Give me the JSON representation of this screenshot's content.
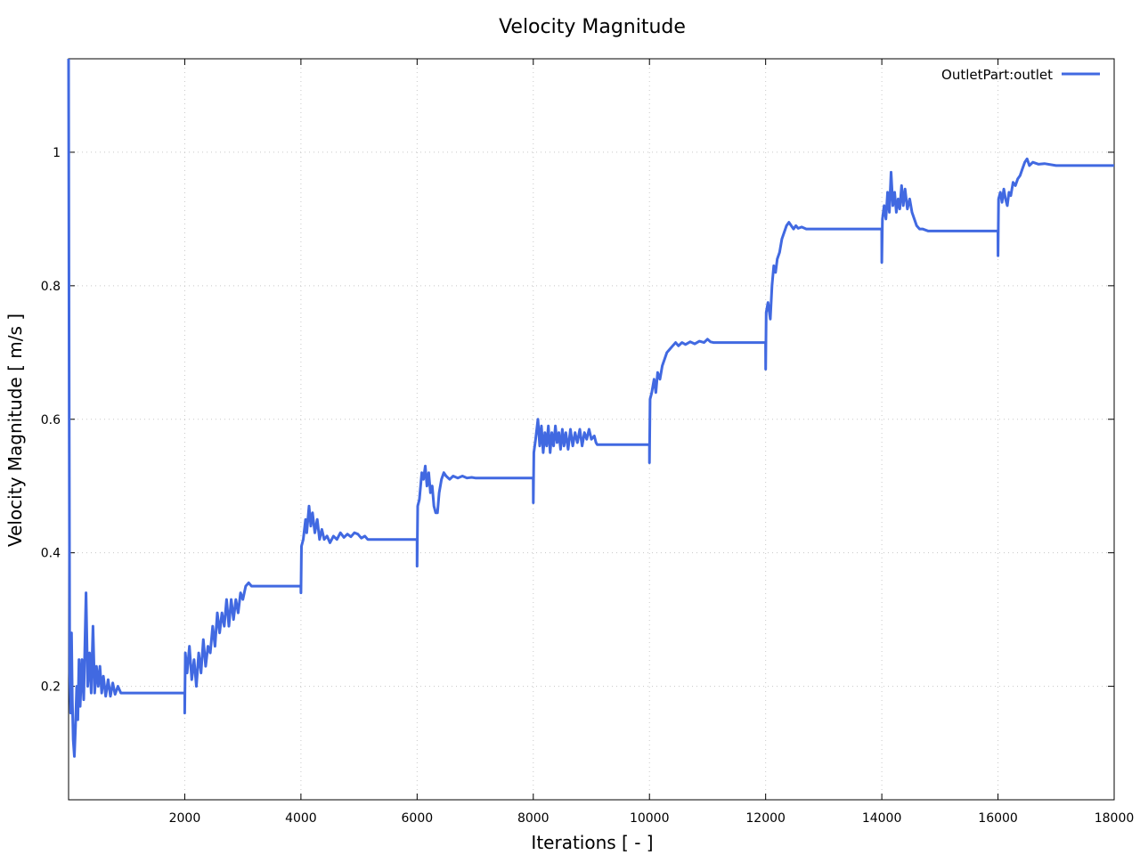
{
  "chart_data": {
    "type": "line",
    "title": "Velocity Magnitude",
    "xlabel": "Iterations [ - ]",
    "ylabel": "Velocity Magnitude [ m/s ]",
    "xlim": [
      0,
      18000
    ],
    "ylim": [
      0.03,
      1.14
    ],
    "x_ticks": [
      2000,
      4000,
      6000,
      8000,
      10000,
      12000,
      14000,
      16000,
      18000
    ],
    "y_ticks": [
      0.2,
      0.4,
      0.6,
      0.8,
      1
    ],
    "grid": true,
    "legend_position": "top-right",
    "series": [
      {
        "name": "OutletPart:outlet",
        "color": "#4169e1",
        "points": [
          [
            0,
            1.14
          ],
          [
            10,
            0.6
          ],
          [
            20,
            0.22
          ],
          [
            35,
            0.16
          ],
          [
            50,
            0.28
          ],
          [
            65,
            0.18
          ],
          [
            80,
            0.12
          ],
          [
            100,
            0.095
          ],
          [
            120,
            0.14
          ],
          [
            140,
            0.2
          ],
          [
            160,
            0.15
          ],
          [
            180,
            0.24
          ],
          [
            200,
            0.17
          ],
          [
            230,
            0.24
          ],
          [
            260,
            0.18
          ],
          [
            300,
            0.34
          ],
          [
            330,
            0.2
          ],
          [
            360,
            0.25
          ],
          [
            390,
            0.19
          ],
          [
            420,
            0.29
          ],
          [
            450,
            0.19
          ],
          [
            480,
            0.23
          ],
          [
            510,
            0.2
          ],
          [
            540,
            0.23
          ],
          [
            570,
            0.19
          ],
          [
            600,
            0.215
          ],
          [
            640,
            0.185
          ],
          [
            680,
            0.21
          ],
          [
            720,
            0.185
          ],
          [
            760,
            0.205
          ],
          [
            800,
            0.188
          ],
          [
            850,
            0.2
          ],
          [
            900,
            0.19
          ],
          [
            950,
            0.19
          ],
          [
            1000,
            0.19
          ],
          [
            1500,
            0.19
          ],
          [
            1999,
            0.19
          ],
          [
            2000,
            0.16
          ],
          [
            2010,
            0.25
          ],
          [
            2040,
            0.22
          ],
          [
            2080,
            0.26
          ],
          [
            2120,
            0.21
          ],
          [
            2160,
            0.24
          ],
          [
            2200,
            0.2
          ],
          [
            2240,
            0.25
          ],
          [
            2280,
            0.22
          ],
          [
            2320,
            0.27
          ],
          [
            2360,
            0.23
          ],
          [
            2400,
            0.26
          ],
          [
            2440,
            0.25
          ],
          [
            2480,
            0.29
          ],
          [
            2520,
            0.26
          ],
          [
            2560,
            0.31
          ],
          [
            2600,
            0.28
          ],
          [
            2640,
            0.31
          ],
          [
            2680,
            0.29
          ],
          [
            2720,
            0.33
          ],
          [
            2760,
            0.29
          ],
          [
            2800,
            0.33
          ],
          [
            2840,
            0.3
          ],
          [
            2880,
            0.33
          ],
          [
            2920,
            0.31
          ],
          [
            2960,
            0.34
          ],
          [
            3000,
            0.33
          ],
          [
            3050,
            0.35
          ],
          [
            3100,
            0.355
          ],
          [
            3150,
            0.35
          ],
          [
            3500,
            0.35
          ],
          [
            3999,
            0.35
          ],
          [
            4000,
            0.34
          ],
          [
            4010,
            0.41
          ],
          [
            4040,
            0.42
          ],
          [
            4080,
            0.45
          ],
          [
            4100,
            0.43
          ],
          [
            4140,
            0.47
          ],
          [
            4170,
            0.44
          ],
          [
            4200,
            0.46
          ],
          [
            4240,
            0.43
          ],
          [
            4280,
            0.45
          ],
          [
            4320,
            0.42
          ],
          [
            4360,
            0.435
          ],
          [
            4400,
            0.42
          ],
          [
            4450,
            0.425
          ],
          [
            4500,
            0.415
          ],
          [
            4560,
            0.425
          ],
          [
            4620,
            0.42
          ],
          [
            4680,
            0.43
          ],
          [
            4740,
            0.423
          ],
          [
            4800,
            0.428
          ],
          [
            4860,
            0.424
          ],
          [
            4920,
            0.43
          ],
          [
            4980,
            0.428
          ],
          [
            5040,
            0.422
          ],
          [
            5100,
            0.425
          ],
          [
            5150,
            0.42
          ],
          [
            5500,
            0.42
          ],
          [
            5999,
            0.42
          ],
          [
            6000,
            0.38
          ],
          [
            6010,
            0.47
          ],
          [
            6040,
            0.48
          ],
          [
            6080,
            0.52
          ],
          [
            6110,
            0.51
          ],
          [
            6140,
            0.53
          ],
          [
            6170,
            0.5
          ],
          [
            6200,
            0.52
          ],
          [
            6230,
            0.49
          ],
          [
            6260,
            0.5
          ],
          [
            6290,
            0.47
          ],
          [
            6320,
            0.46
          ],
          [
            6350,
            0.46
          ],
          [
            6380,
            0.49
          ],
          [
            6420,
            0.51
          ],
          [
            6460,
            0.52
          ],
          [
            6500,
            0.515
          ],
          [
            6560,
            0.51
          ],
          [
            6620,
            0.515
          ],
          [
            6700,
            0.512
          ],
          [
            6780,
            0.515
          ],
          [
            6860,
            0.512
          ],
          [
            6940,
            0.513
          ],
          [
            7000,
            0.512
          ],
          [
            7500,
            0.512
          ],
          [
            7999,
            0.512
          ],
          [
            8000,
            0.475
          ],
          [
            8010,
            0.55
          ],
          [
            8040,
            0.57
          ],
          [
            8080,
            0.6
          ],
          [
            8110,
            0.56
          ],
          [
            8140,
            0.59
          ],
          [
            8170,
            0.55
          ],
          [
            8200,
            0.58
          ],
          [
            8230,
            0.56
          ],
          [
            8260,
            0.59
          ],
          [
            8290,
            0.55
          ],
          [
            8320,
            0.58
          ],
          [
            8350,
            0.56
          ],
          [
            8380,
            0.59
          ],
          [
            8410,
            0.565
          ],
          [
            8440,
            0.58
          ],
          [
            8470,
            0.555
          ],
          [
            8500,
            0.585
          ],
          [
            8530,
            0.56
          ],
          [
            8560,
            0.58
          ],
          [
            8600,
            0.555
          ],
          [
            8640,
            0.585
          ],
          [
            8680,
            0.56
          ],
          [
            8720,
            0.58
          ],
          [
            8760,
            0.565
          ],
          [
            8800,
            0.585
          ],
          [
            8840,
            0.56
          ],
          [
            8880,
            0.58
          ],
          [
            8920,
            0.57
          ],
          [
            8960,
            0.585
          ],
          [
            9000,
            0.57
          ],
          [
            9050,
            0.575
          ],
          [
            9080,
            0.565
          ],
          [
            9100,
            0.562
          ],
          [
            9500,
            0.562
          ],
          [
            9999,
            0.562
          ],
          [
            10000,
            0.535
          ],
          [
            10010,
            0.63
          ],
          [
            10040,
            0.64
          ],
          [
            10080,
            0.66
          ],
          [
            10110,
            0.64
          ],
          [
            10140,
            0.67
          ],
          [
            10180,
            0.66
          ],
          [
            10220,
            0.68
          ],
          [
            10260,
            0.69
          ],
          [
            10300,
            0.7
          ],
          [
            10350,
            0.705
          ],
          [
            10400,
            0.71
          ],
          [
            10450,
            0.715
          ],
          [
            10500,
            0.71
          ],
          [
            10560,
            0.715
          ],
          [
            10620,
            0.712
          ],
          [
            10700,
            0.716
          ],
          [
            10780,
            0.713
          ],
          [
            10860,
            0.717
          ],
          [
            10940,
            0.715
          ],
          [
            11000,
            0.72
          ],
          [
            11050,
            0.716
          ],
          [
            11100,
            0.715
          ],
          [
            11500,
            0.715
          ],
          [
            11999,
            0.715
          ],
          [
            12000,
            0.675
          ],
          [
            12010,
            0.76
          ],
          [
            12040,
            0.775
          ],
          [
            12080,
            0.75
          ],
          [
            12110,
            0.8
          ],
          [
            12140,
            0.83
          ],
          [
            12170,
            0.82
          ],
          [
            12200,
            0.84
          ],
          [
            12240,
            0.85
          ],
          [
            12280,
            0.87
          ],
          [
            12320,
            0.88
          ],
          [
            12360,
            0.89
          ],
          [
            12400,
            0.895
          ],
          [
            12440,
            0.89
          ],
          [
            12480,
            0.885
          ],
          [
            12520,
            0.89
          ],
          [
            12560,
            0.886
          ],
          [
            12620,
            0.888
          ],
          [
            12700,
            0.885
          ],
          [
            13000,
            0.885
          ],
          [
            13500,
            0.885
          ],
          [
            13999,
            0.885
          ],
          [
            14000,
            0.835
          ],
          [
            14010,
            0.9
          ],
          [
            14040,
            0.92
          ],
          [
            14070,
            0.9
          ],
          [
            14100,
            0.94
          ],
          [
            14130,
            0.91
          ],
          [
            14160,
            0.97
          ],
          [
            14190,
            0.92
          ],
          [
            14220,
            0.94
          ],
          [
            14250,
            0.91
          ],
          [
            14280,
            0.93
          ],
          [
            14310,
            0.915
          ],
          [
            14340,
            0.95
          ],
          [
            14370,
            0.92
          ],
          [
            14400,
            0.945
          ],
          [
            14440,
            0.915
          ],
          [
            14480,
            0.93
          ],
          [
            14520,
            0.91
          ],
          [
            14560,
            0.9
          ],
          [
            14600,
            0.89
          ],
          [
            14650,
            0.885
          ],
          [
            14700,
            0.885
          ],
          [
            14800,
            0.882
          ],
          [
            15000,
            0.882
          ],
          [
            15500,
            0.882
          ],
          [
            15999,
            0.882
          ],
          [
            16000,
            0.845
          ],
          [
            16010,
            0.93
          ],
          [
            16040,
            0.94
          ],
          [
            16070,
            0.925
          ],
          [
            16100,
            0.945
          ],
          [
            16130,
            0.93
          ],
          [
            16160,
            0.92
          ],
          [
            16190,
            0.94
          ],
          [
            16220,
            0.935
          ],
          [
            16260,
            0.955
          ],
          [
            16300,
            0.95
          ],
          [
            16340,
            0.96
          ],
          [
            16380,
            0.965
          ],
          [
            16420,
            0.975
          ],
          [
            16460,
            0.985
          ],
          [
            16500,
            0.99
          ],
          [
            16540,
            0.98
          ],
          [
            16600,
            0.985
          ],
          [
            16700,
            0.982
          ],
          [
            16800,
            0.983
          ],
          [
            17000,
            0.98
          ],
          [
            17500,
            0.98
          ],
          [
            18000,
            0.98
          ]
        ]
      }
    ]
  }
}
